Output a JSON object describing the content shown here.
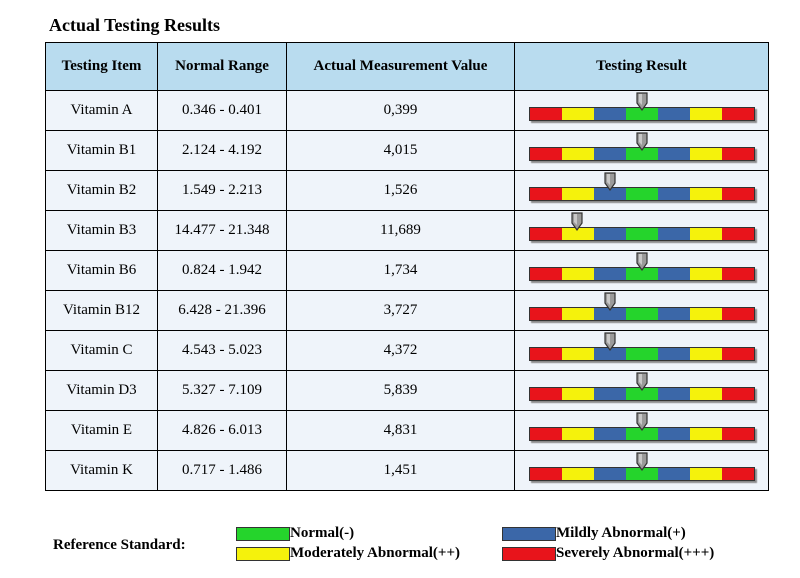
{
  "title": "Actual Testing Results",
  "colors": {
    "severe": "#e8141b",
    "moderate": "#f5f20c",
    "mild": "#3b67a8",
    "normal": "#25d42c",
    "header_bg": "#b9dcef",
    "row_bg": "#eff4fa"
  },
  "table": {
    "headers": [
      "Testing Item",
      "Normal Range",
      "Actual Measurement Value",
      "Testing Result"
    ],
    "rows": [
      {
        "item": "Vitamin A",
        "range": "0.346 - 0.401",
        "value": "0,399",
        "result_level": 0.5
      },
      {
        "item": "Vitamin B1",
        "range": "2.124 - 4.192",
        "value": "4,015",
        "result_level": 0.5
      },
      {
        "item": "Vitamin B2",
        "range": "1.549 - 2.213",
        "value": "1,526",
        "result_level": 0.36
      },
      {
        "item": "Vitamin B3",
        "range": "14.477 - 21.348",
        "value": "11,689",
        "result_level": 0.21
      },
      {
        "item": "Vitamin B6",
        "range": "0.824 - 1.942",
        "value": "1,734",
        "result_level": 0.5
      },
      {
        "item": "Vitamin B12",
        "range": "6.428 - 21.396",
        "value": "3,727",
        "result_level": 0.36
      },
      {
        "item": "Vitamin C",
        "range": "4.543 - 5.023",
        "value": "4,372",
        "result_level": 0.36
      },
      {
        "item": "Vitamin D3",
        "range": "5.327 - 7.109",
        "value": "5,839",
        "result_level": 0.5
      },
      {
        "item": "Vitamin E",
        "range": "4.826 - 6.013",
        "value": "4,831",
        "result_level": 0.5
      },
      {
        "item": "Vitamin K",
        "range": "0.717 - 1.486",
        "value": "1,451",
        "result_level": 0.5
      }
    ]
  },
  "legend": {
    "label": "Reference Standard:",
    "items": [
      {
        "text": "Normal(-)",
        "color_key": "normal"
      },
      {
        "text": "Mildly Abnormal(+)",
        "color_key": "mild"
      },
      {
        "text": "Moderately Abnormal(++)",
        "color_key": "moderate"
      },
      {
        "text": "Severely Abnormal(+++)",
        "color_key": "severe"
      }
    ]
  }
}
